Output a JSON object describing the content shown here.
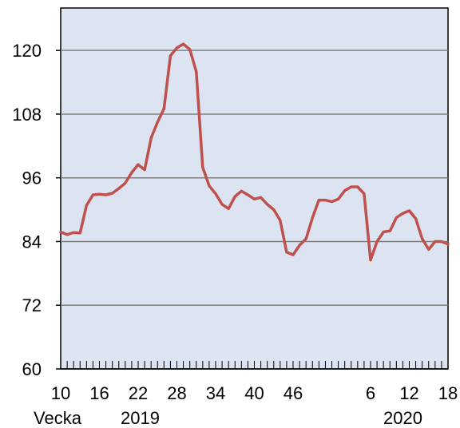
{
  "chart_data": {
    "type": "line",
    "title": "",
    "xlabel": "Vecka",
    "ylabel": "",
    "ylim": [
      60,
      128
    ],
    "yticks": [
      60,
      72,
      84,
      96,
      108,
      120
    ],
    "grid": true,
    "legend": "none",
    "x_tick_labels": [
      "10",
      "16",
      "22",
      "28",
      "34",
      "40",
      "46",
      "6",
      "12",
      "18"
    ],
    "year_labels": [
      "2019",
      "2020"
    ],
    "colors": {
      "plot_background": "#dbe4f0",
      "line": "#c0504d",
      "grid": "#7f7f7f"
    },
    "series": [
      {
        "weeks": [
          "2019-10",
          "2019-11",
          "2019-12",
          "2019-13",
          "2019-14",
          "2019-15",
          "2019-16",
          "2019-17",
          "2019-18",
          "2019-19",
          "2019-20",
          "2019-21",
          "2019-22",
          "2019-23",
          "2019-24",
          "2019-25",
          "2019-26",
          "2019-27",
          "2019-28",
          "2019-29",
          "2019-30",
          "2019-31",
          "2019-32",
          "2019-33",
          "2019-34",
          "2019-35",
          "2019-36",
          "2019-37",
          "2019-38",
          "2019-39",
          "2019-40",
          "2019-41",
          "2019-42",
          "2019-43",
          "2019-44",
          "2019-45",
          "2019-46",
          "2019-47",
          "2019-48",
          "2019-49",
          "2019-50",
          "2019-51",
          "2019-52",
          "2020-01",
          "2020-02",
          "2020-03",
          "2020-04",
          "2020-05",
          "2020-06",
          "2020-07",
          "2020-08",
          "2020-09",
          "2020-10",
          "2020-11",
          "2020-12",
          "2020-13",
          "2020-14",
          "2020-15",
          "2020-16",
          "2020-17",
          "2020-18"
        ],
        "values": [
          85.8,
          85.3,
          85.7,
          85.6,
          90.8,
          92.8,
          92.9,
          92.8,
          93.1,
          94.0,
          95.0,
          97.0,
          98.5,
          97.5,
          103.5,
          106.5,
          109.0,
          119.0,
          120.5,
          121.2,
          120.2,
          116.0,
          98.0,
          94.5,
          93.0,
          91.0,
          90.2,
          92.5,
          93.5,
          92.8,
          92.0,
          92.3,
          91.0,
          90.0,
          88.0,
          82.0,
          81.5,
          83.3,
          84.5,
          88.5,
          91.8,
          91.8,
          91.5,
          92.0,
          93.6,
          94.3,
          94.3,
          93.0,
          80.5,
          84.0,
          85.8,
          86.0,
          88.5,
          89.3,
          89.8,
          88.3,
          84.5,
          82.5,
          84.0,
          84.0,
          83.5
        ]
      }
    ]
  }
}
